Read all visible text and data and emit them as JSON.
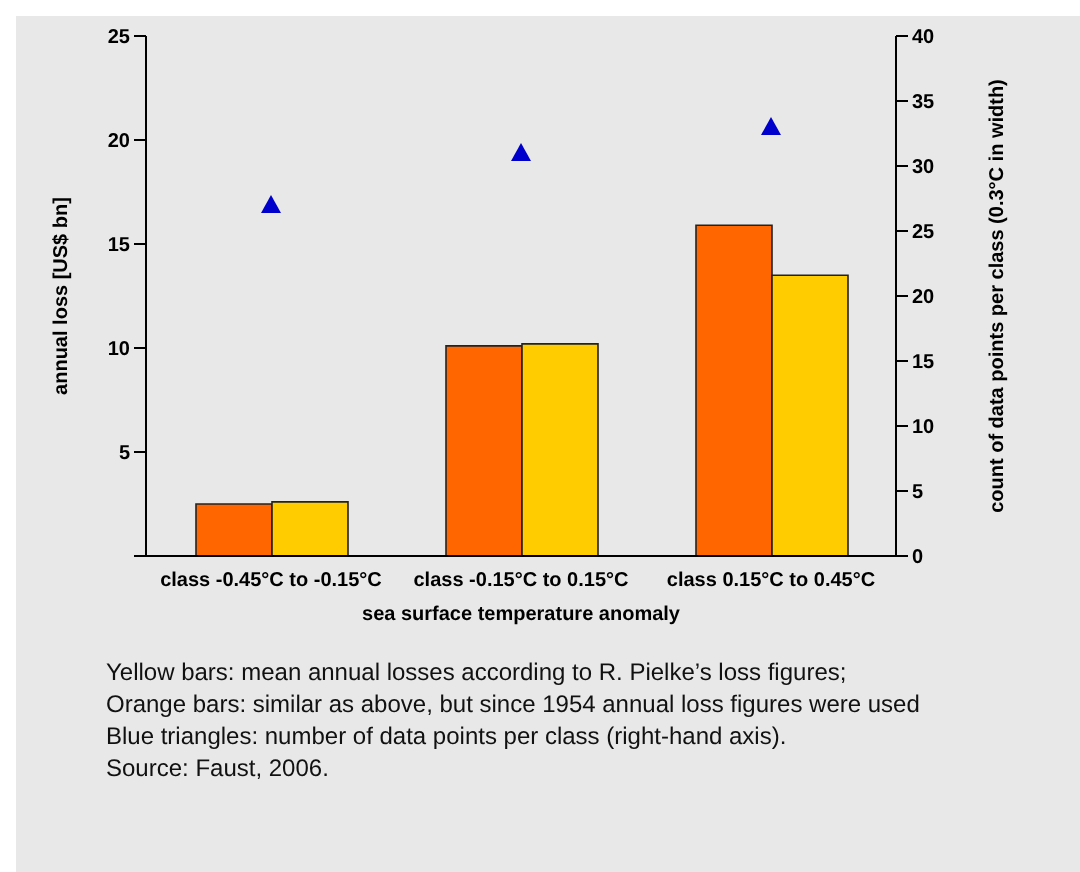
{
  "chart_data": {
    "type": "bar",
    "xlabel": "sea surface temperature anomaly",
    "ylabel": "annual loss [US$ bn]",
    "y2label": "count  of data points per class (0.3°C in width)",
    "categories": [
      "class -0.45°C to -0.15°C",
      "class -0.15°C to 0.15°C",
      "class 0.15°C to 0.45°C"
    ],
    "series": [
      {
        "color": "#ff6600",
        "values": [
          2.5,
          10.1,
          15.9
        ]
      },
      {
        "color": "#ffcc00",
        "values": [
          2.6,
          10.2,
          13.5
        ]
      },
      {
        "type": "scatter",
        "axis": "y2",
        "marker": "triangle",
        "color": "#0000cc",
        "values": [
          27,
          31,
          33
        ]
      }
    ],
    "ylim": [
      0,
      25
    ],
    "yticks": [
      {
        "value": 0,
        "label": null
      },
      5,
      10,
      15,
      20,
      25
    ],
    "y2lim": [
      0,
      40
    ],
    "y2ticks": [
      0,
      5,
      10,
      15,
      20,
      25,
      30,
      35,
      40
    ],
    "grid": false,
    "legend": false,
    "annotations": [
      "Yellow bars: mean annual losses according to R. Pielke’s loss figures;",
      "Orange bars:  similar as above, but since 1954 annual loss figures were used",
      "Blue triangles: number of data points per class (right-hand axis).",
      "Source: Faust, 2006."
    ]
  }
}
